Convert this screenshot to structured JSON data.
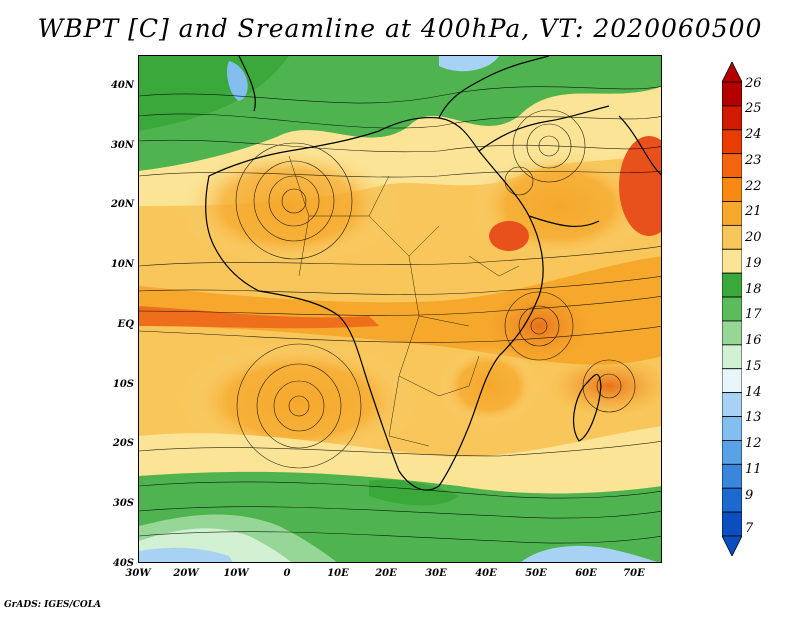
{
  "title": "WBPT [C] and Sreamline at 400hPa, VT: 2020060500",
  "footer": "GrADS: IGES/COLA",
  "y_ticks": [
    "40N",
    "30N",
    "20N",
    "10N",
    "EQ",
    "10S",
    "20S",
    "30S",
    "40S"
  ],
  "x_ticks": [
    "30W",
    "20W",
    "10W",
    "0",
    "10E",
    "20E",
    "30E",
    "40E",
    "50E",
    "60E",
    "70E"
  ],
  "colorbar": {
    "labels": [
      "26",
      "25",
      "24",
      "23",
      "22",
      "21",
      "20",
      "19",
      "18",
      "17",
      "16",
      "15",
      "14",
      "13",
      "12",
      "11",
      "9",
      "7"
    ],
    "colors": [
      "#b50000",
      "#d21a00",
      "#e83c00",
      "#f56410",
      "#f88a14",
      "#f6a82c",
      "#f8c65a",
      "#fbe496",
      "#3aa83a",
      "#5cbc5c",
      "#96d696",
      "#d2f0d2",
      "#e8f6fc",
      "#a8d2f4",
      "#82bef0",
      "#5aa2e6",
      "#3a86dc",
      "#1c6ad0",
      "#0a4ec0"
    ]
  }
}
